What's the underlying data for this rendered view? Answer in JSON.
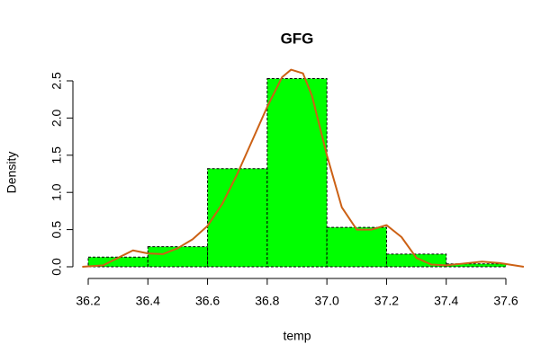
{
  "chart_data": {
    "type": "histogram",
    "title": "GFG",
    "x_label": "temp",
    "y_label": "Density",
    "bins": [
      36.2,
      36.4,
      36.6,
      36.8,
      37.0,
      37.2,
      37.4,
      37.6
    ],
    "values": [
      0.13,
      0.27,
      1.32,
      2.53,
      0.53,
      0.17,
      0.04
    ],
    "color": "#00ff00",
    "density": {
      "color": "#cc6115",
      "x": [
        36.18,
        36.25,
        36.3,
        36.35,
        36.4,
        36.45,
        36.5,
        36.55,
        36.6,
        36.65,
        36.7,
        36.75,
        36.8,
        36.85,
        36.88,
        36.92,
        36.95,
        37.0,
        37.05,
        37.1,
        37.15,
        37.2,
        37.25,
        37.3,
        37.35,
        37.4,
        37.45,
        37.52,
        37.58,
        37.66
      ],
      "values": [
        0.0,
        0.02,
        0.12,
        0.22,
        0.18,
        0.17,
        0.25,
        0.37,
        0.55,
        0.85,
        1.25,
        1.7,
        2.15,
        2.55,
        2.65,
        2.6,
        2.3,
        1.5,
        0.8,
        0.5,
        0.5,
        0.56,
        0.4,
        0.12,
        0.03,
        0.02,
        0.04,
        0.07,
        0.05,
        0.0
      ]
    },
    "xlim": [
      36.2,
      37.6
    ],
    "xticks": [
      36.2,
      36.4,
      36.6,
      36.8,
      {
        "value": 37.0,
        "label": "37.0"
      },
      37.2,
      37.4,
      37.6
    ],
    "ylim": [
      0,
      2.5
    ],
    "yticks": [
      {
        "value": 0,
        "label": "0.0"
      },
      {
        "value": 0.5,
        "label": "0.5"
      },
      {
        "value": 1,
        "label": "1.0"
      },
      {
        "value": 1.5,
        "label": "1.5"
      },
      {
        "value": 2,
        "label": "2.0"
      },
      {
        "value": 2.5,
        "label": "2.5"
      }
    ]
  }
}
